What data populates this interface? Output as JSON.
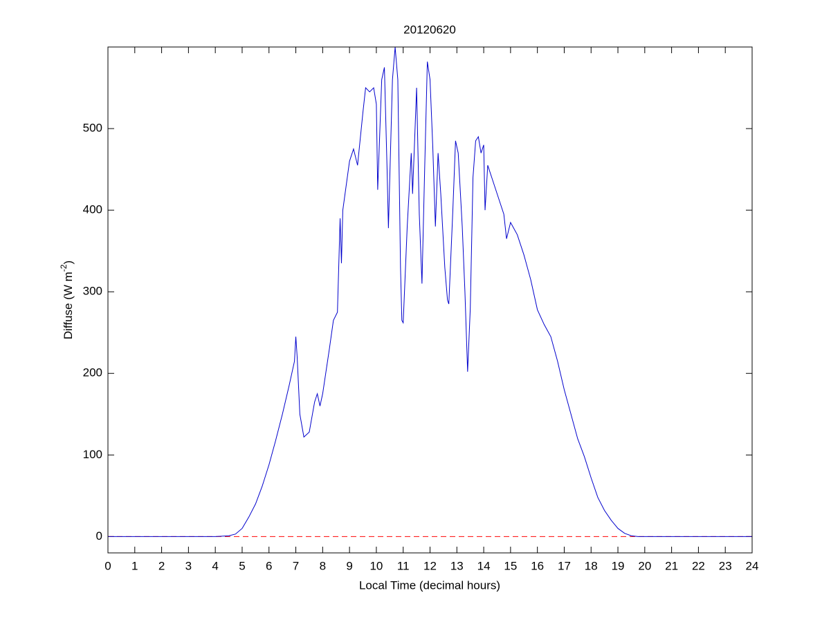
{
  "chart_data": {
    "type": "line",
    "title": "20120620",
    "xlabel": "Local Time (decimal hours)",
    "ylabel": [
      "Diffuse (W m",
      "-2",
      ")"
    ],
    "x": [
      0,
      4,
      4.5,
      4.75,
      5,
      5.25,
      5.5,
      5.75,
      6,
      6.25,
      6.5,
      6.75,
      6.95,
      7.0,
      7.05,
      7.15,
      7.3,
      7.5,
      7.7,
      7.8,
      7.9,
      8.0,
      8.25,
      8.4,
      8.55,
      8.65,
      8.7,
      8.75,
      9.0,
      9.15,
      9.3,
      9.5,
      9.6,
      9.75,
      9.9,
      10.0,
      10.05,
      10.2,
      10.3,
      10.4,
      10.45,
      10.6,
      10.7,
      10.8,
      10.9,
      10.95,
      11.0,
      11.15,
      11.3,
      11.35,
      11.5,
      11.6,
      11.7,
      11.8,
      11.9,
      12.0,
      12.1,
      12.2,
      12.3,
      12.4,
      12.55,
      12.65,
      12.7,
      12.85,
      12.95,
      13.05,
      13.2,
      13.3,
      13.4,
      13.5,
      13.6,
      13.7,
      13.8,
      13.9,
      14.0,
      14.05,
      14.15,
      14.3,
      14.5,
      14.75,
      14.85,
      15.0,
      15.25,
      15.5,
      15.75,
      16.0,
      16.25,
      16.5,
      16.75,
      17.0,
      17.25,
      17.5,
      17.75,
      18.0,
      18.25,
      18.5,
      18.75,
      19.0,
      19.25,
      19.5,
      19.75,
      20,
      24
    ],
    "series": [
      {
        "color": "#0000cc",
        "values": [
          0,
          0,
          1,
          3,
          10,
          24,
          40,
          62,
          88,
          118,
          150,
          185,
          215,
          245,
          220,
          150,
          122,
          128,
          165,
          175,
          160,
          175,
          230,
          265,
          275,
          390,
          335,
          400,
          460,
          475,
          455,
          520,
          550,
          545,
          550,
          530,
          425,
          560,
          575,
          450,
          378,
          560,
          600,
          560,
          330,
          265,
          262,
          380,
          470,
          420,
          550,
          395,
          310,
          450,
          582,
          560,
          480,
          380,
          470,
          420,
          330,
          290,
          285,
          400,
          485,
          470,
          380,
          300,
          202,
          280,
          440,
          485,
          490,
          470,
          480,
          400,
          455,
          440,
          420,
          395,
          365,
          385,
          370,
          345,
          315,
          278,
          260,
          245,
          215,
          180,
          150,
          120,
          98,
          72,
          48,
          32,
          20,
          10,
          4,
          1,
          0,
          0,
          0
        ]
      }
    ],
    "reference_line": {
      "value": 0,
      "color": "#ff0000",
      "style": "dashed"
    },
    "xlim": [
      0,
      24
    ],
    "xticks": [
      0,
      1,
      2,
      3,
      4,
      5,
      6,
      7,
      8,
      9,
      10,
      11,
      12,
      13,
      14,
      15,
      16,
      17,
      18,
      19,
      20,
      21,
      22,
      23,
      24
    ],
    "ylim": [
      -20,
      600
    ],
    "yticks": [
      0,
      100,
      200,
      300,
      400,
      500
    ],
    "grid": false
  }
}
